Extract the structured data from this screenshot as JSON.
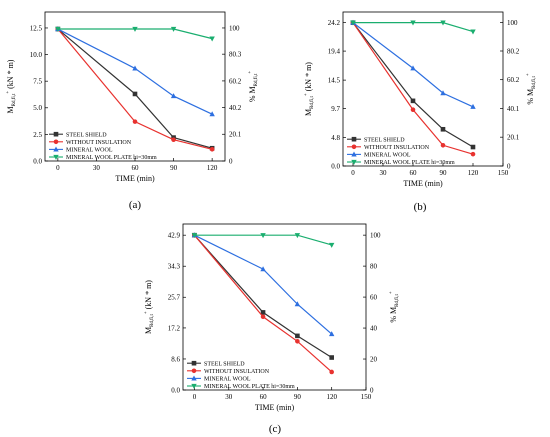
{
  "series_meta": [
    {
      "name": "STEEL SHIELD",
      "color": "#333333",
      "marker": "square"
    },
    {
      "name": "WITHOUT INSULATION",
      "color": "#e8322f",
      "marker": "circle"
    },
    {
      "name": "MINERAL WOOL",
      "color": "#2d6fe0",
      "marker": "triangle-up"
    },
    {
      "name": "MINERAL WOOL PLATE hi=30mm",
      "color": "#1aae6f",
      "marker": "triangle-down"
    }
  ],
  "chart_data": [
    {
      "type": "line",
      "panel_label": "(a)",
      "xlabel": "TIME (min)",
      "ylabel_left": "M_Rd,fi,t^+ (kN * m)",
      "ylabel_right": "% M_Rd,fi,t^+",
      "x": [
        0,
        60,
        90,
        120
      ],
      "xlim": [
        -10,
        130
      ],
      "xticks": [
        0,
        30,
        60,
        90,
        120
      ],
      "ylim_left": [
        0,
        14.0
      ],
      "yticks_left": [
        0.0,
        2.5,
        5.0,
        7.5,
        10.0,
        12.5
      ],
      "ylim_right": [
        0,
        112
      ],
      "yticks_right": [
        0,
        20.1,
        40.2,
        60.2,
        80.3,
        100
      ],
      "series": [
        {
          "name": "STEEL SHIELD",
          "values": [
            12.4,
            6.3,
            2.2,
            1.2
          ]
        },
        {
          "name": "WITHOUT INSULATION",
          "values": [
            12.4,
            3.7,
            2.0,
            1.1
          ]
        },
        {
          "name": "MINERAL WOOL",
          "values": [
            12.4,
            8.7,
            6.1,
            4.4
          ]
        },
        {
          "name": "MINERAL WOOL PLATE hi=30mm",
          "values": [
            12.4,
            12.4,
            12.4,
            11.5
          ]
        }
      ],
      "legend_position": "bottom-left"
    },
    {
      "type": "line",
      "panel_label": "(b)",
      "xlabel": "TIME (min)",
      "ylabel_left": "M_Rd,fi,t^+ (kN * m)",
      "ylabel_right": "% M_Rd,fi,t^+",
      "x": [
        0,
        60,
        90,
        120
      ],
      "xlim": [
        -10,
        150
      ],
      "xticks": [
        0,
        30,
        60,
        90,
        120,
        150
      ],
      "ylim_left": [
        0,
        26.0
      ],
      "yticks_left": [
        0.0,
        4.8,
        9.7,
        14.5,
        19.4,
        24.2
      ],
      "ylim_right": [
        0,
        107.4
      ],
      "yticks_right": [
        0,
        20.1,
        40.1,
        60.2,
        80.2,
        100
      ],
      "series": [
        {
          "name": "STEEL SHIELD",
          "values": [
            24.2,
            11.0,
            6.2,
            3.2
          ]
        },
        {
          "name": "WITHOUT INSULATION",
          "values": [
            24.2,
            9.5,
            3.5,
            2.0
          ]
        },
        {
          "name": "MINERAL WOOL",
          "values": [
            24.2,
            16.5,
            12.3,
            10.0
          ]
        },
        {
          "name": "MINERAL WOOL PLATE hi=30mm",
          "values": [
            24.2,
            24.2,
            24.2,
            22.7
          ]
        }
      ],
      "legend_position": "bottom-left"
    },
    {
      "type": "line",
      "panel_label": "(c)",
      "xlabel": "TIME (min)",
      "ylabel_left": "M_Rd,fi,t^+ (kN * m)",
      "ylabel_right": "% M_Rd,fi,t^+",
      "x": [
        0,
        60,
        90,
        120
      ],
      "xlim": [
        -10,
        150
      ],
      "xticks": [
        0,
        30,
        60,
        90,
        120,
        150
      ],
      "ylim_left": [
        0,
        46.0
      ],
      "yticks_left": [
        0.0,
        8.6,
        17.2,
        25.7,
        34.3,
        42.9
      ],
      "ylim_right": [
        0,
        107.2
      ],
      "yticks_right": [
        0,
        20,
        40,
        60,
        80,
        100
      ],
      "series": [
        {
          "name": "STEEL SHIELD",
          "values": [
            42.9,
            21.5,
            15.0,
            9.0
          ]
        },
        {
          "name": "WITHOUT INSULATION",
          "values": [
            42.9,
            20.3,
            13.5,
            5.0
          ]
        },
        {
          "name": "MINERAL WOOL",
          "values": [
            42.9,
            33.5,
            23.8,
            15.5
          ]
        },
        {
          "name": "MINERAL WOOL PLATE hi=30mm",
          "values": [
            42.9,
            42.9,
            42.9,
            40.2
          ]
        }
      ],
      "legend_position": "bottom-left"
    }
  ]
}
